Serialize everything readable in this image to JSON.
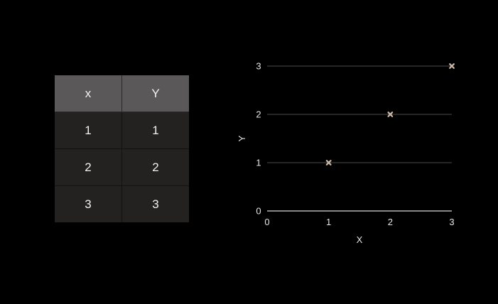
{
  "table": {
    "headers": [
      "x",
      "Y"
    ],
    "rows": [
      [
        "1",
        "1"
      ],
      [
        "2",
        "2"
      ],
      [
        "3",
        "3"
      ]
    ]
  },
  "chart_data": {
    "type": "scatter",
    "x": [
      1,
      2,
      3
    ],
    "y": [
      1,
      2,
      3
    ],
    "xlabel": "X",
    "ylabel": "Y",
    "xlim": [
      0,
      3
    ],
    "ylim": [
      0,
      3
    ],
    "xticks": [
      "0",
      "1",
      "2",
      "3"
    ],
    "yticks": [
      "0",
      "1",
      "2",
      "3"
    ],
    "grid": "horizontal",
    "marker": "x",
    "colors": {
      "marker": "#c9b8a6",
      "grid": "#4a4a4a",
      "axis": "#d9d9d9",
      "text": "#e6e6e6"
    }
  }
}
